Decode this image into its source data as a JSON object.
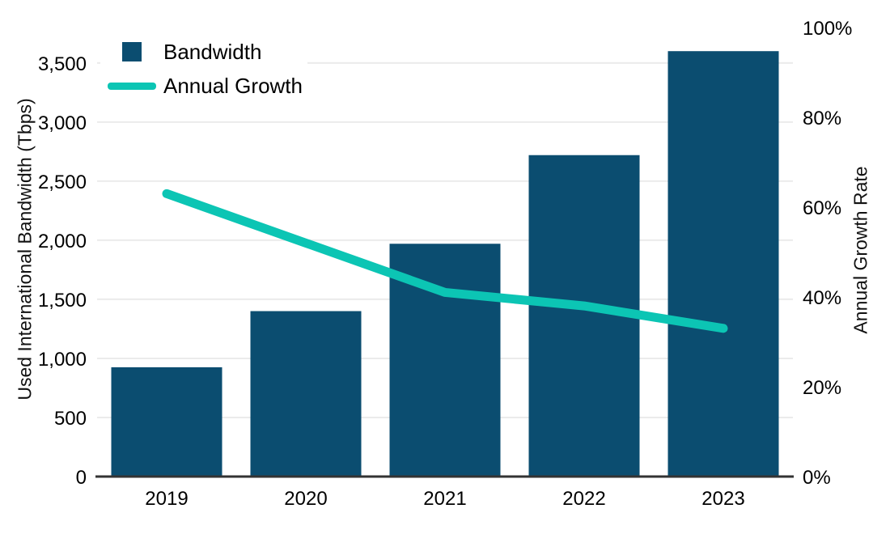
{
  "chart_data": {
    "type": "combo_bar_line",
    "title": "",
    "categories": [
      "2019",
      "2020",
      "2021",
      "2022",
      "2023"
    ],
    "series": [
      {
        "name": "Bandwidth",
        "type": "bar",
        "axis": "left",
        "unit": "Tbps",
        "color": "#0b4d70",
        "values": [
          925,
          1400,
          1970,
          2720,
          3600
        ]
      },
      {
        "name": "Annual Growth",
        "type": "line",
        "axis": "right",
        "unit": "%",
        "color": "#0cc5b4",
        "values": [
          63,
          52,
          41,
          38,
          33
        ]
      }
    ],
    "left_axis": {
      "title": "Used International Bandwidth (Tbps)",
      "tick_labels": [
        "0",
        "500",
        "1,000",
        "1,500",
        "2,000",
        "2,500",
        "3,000",
        "3,500"
      ],
      "tick_values": [
        0,
        500,
        1000,
        1500,
        2000,
        2500,
        3000,
        3500
      ],
      "range": [
        0,
        3800
      ]
    },
    "right_axis": {
      "title": "Annual Growth Rate",
      "tick_labels": [
        "0%",
        "20%",
        "40%",
        "60%",
        "80%",
        "100%"
      ],
      "tick_values": [
        0,
        20,
        40,
        60,
        80,
        100
      ],
      "range": [
        0,
        100
      ]
    },
    "legend": {
      "position": "top-left",
      "entries": [
        "Bandwidth",
        "Annual Growth"
      ]
    },
    "grid": "horizontal gridlines at left-axis ticks",
    "colors": {
      "background": "#ffffff",
      "grid": "#ebebeb",
      "axis_line": "#333333",
      "text": "#000000"
    }
  },
  "legend": {
    "bandwidth_label": "Bandwidth",
    "growth_label": "Annual Growth"
  },
  "axes": {
    "left_title": "Used International Bandwidth (Tbps)",
    "right_title": "Annual Growth Rate"
  }
}
